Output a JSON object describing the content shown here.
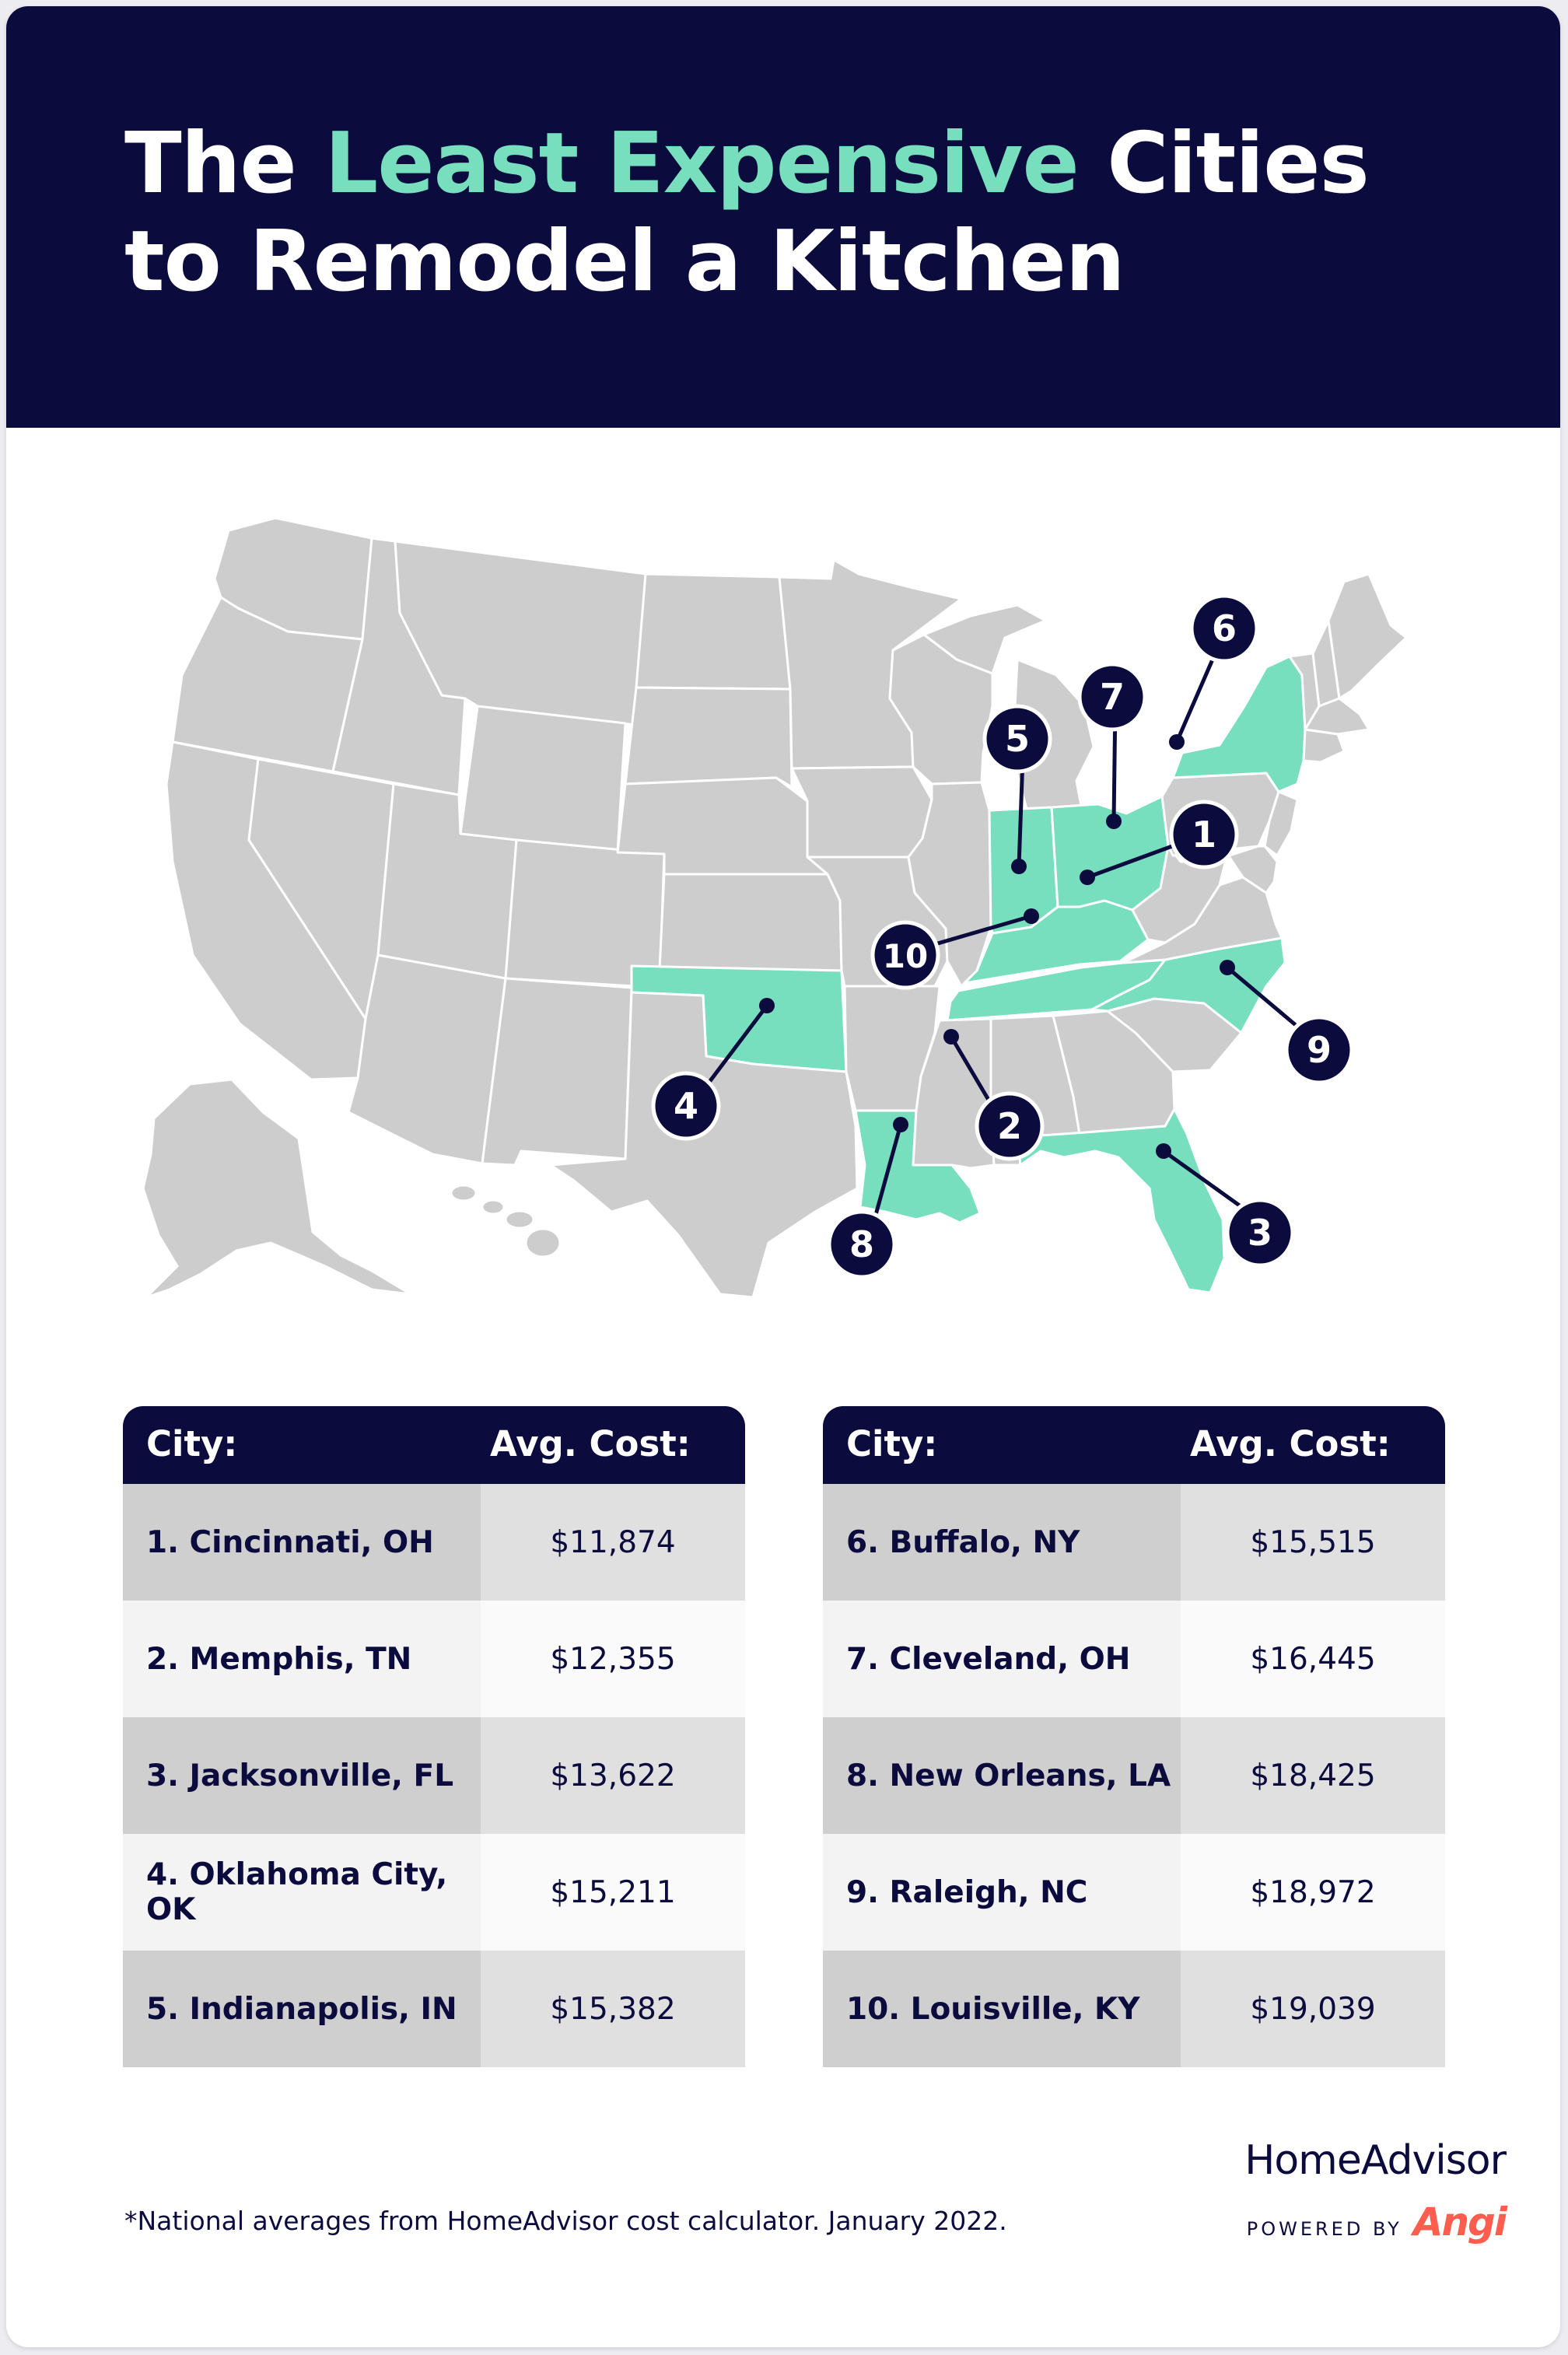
{
  "title": {
    "part1": "The ",
    "accent": "Least Expensive",
    "part2": " Cities to Remodel a Kitchen"
  },
  "colors": {
    "navy": "#0c0b3d",
    "accent": "#78dfbe",
    "state": "#cdcdcd"
  },
  "map": {
    "highlighted_states": [
      "OH",
      "TN",
      "FL",
      "OK",
      "IN",
      "NY",
      "LA",
      "NC",
      "KY"
    ],
    "markers": [
      "1",
      "2",
      "3",
      "4",
      "5",
      "6",
      "7",
      "8",
      "9",
      "10"
    ]
  },
  "tables": {
    "header_city": "City:",
    "header_cost": "Avg. Cost:",
    "left": [
      {
        "city": "1. Cincinnati, OH",
        "cost": "$11,874"
      },
      {
        "city": "2. Memphis, TN",
        "cost": "$12,355"
      },
      {
        "city": "3. Jacksonville, FL",
        "cost": "$13,622"
      },
      {
        "city": "4. Oklahoma City, OK",
        "cost": "$15,211"
      },
      {
        "city": "5. Indianapolis, IN",
        "cost": "$15,382"
      }
    ],
    "right": [
      {
        "city": "6. Buffalo, NY",
        "cost": "$15,515"
      },
      {
        "city": "7. Cleveland, OH",
        "cost": "$16,445"
      },
      {
        "city": "8. New Orleans, LA",
        "cost": "$18,425"
      },
      {
        "city": "9. Raleigh, NC",
        "cost": "$18,972"
      },
      {
        "city": "10. Louisville, KY",
        "cost": "$19,039"
      }
    ]
  },
  "footnote": "*National averages from HomeAdvisor cost calculator. January 2022.",
  "logo": {
    "brand": "HomeAdvisor",
    "powered_by": "POWERED BY",
    "partner": "Angi"
  }
}
